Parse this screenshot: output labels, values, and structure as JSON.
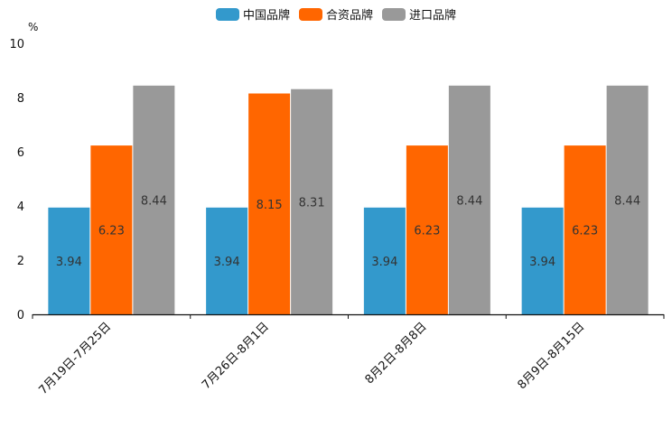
{
  "chart_data": {
    "type": "bar",
    "title": "",
    "unit": "%",
    "xlabel": "",
    "ylabel": "%",
    "ylim": [
      0,
      10
    ],
    "yticks": [
      0,
      2,
      4,
      6,
      8,
      10
    ],
    "grid": false,
    "legend_position": "top-center",
    "categories": [
      "7月19日-7月25日",
      "7月26日-8月1日",
      "8月2日-8月8日",
      "8月9日-8月15日"
    ],
    "series": [
      {
        "name": "中国品牌",
        "color": "#3399cc",
        "values": [
          3.94,
          3.94,
          3.94,
          3.94
        ]
      },
      {
        "name": "合资品牌",
        "color": "#ff6600",
        "values": [
          6.23,
          8.15,
          6.23,
          6.23
        ]
      },
      {
        "name": "进口品牌",
        "color": "#999999",
        "values": [
          8.44,
          8.31,
          8.44,
          8.44
        ]
      }
    ]
  }
}
